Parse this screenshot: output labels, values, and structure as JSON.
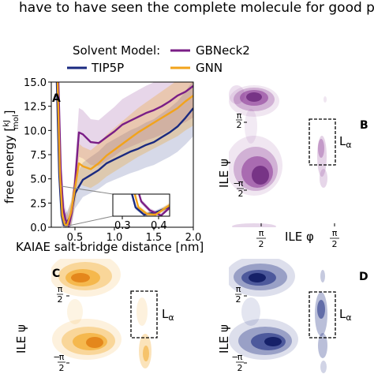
{
  "caption_text": "have to have seen the complete molecule for good performance",
  "chart_data": [
    {
      "type": "line",
      "panel": "A",
      "xlabel": "KAIAE salt-bridge distance [nm]",
      "ylabel": "free energy [kJ/mol]",
      "xlim": [
        0.2,
        2.0
      ],
      "ylim": [
        0.0,
        15.0
      ],
      "xticks": [
        "0.5",
        "1.0",
        "1.5",
        "2.0"
      ],
      "yticks": [
        "0.0",
        "2.5",
        "5.0",
        "7.5",
        "10.0",
        "12.5",
        "15.0"
      ],
      "legend_title": "Solvent Model:",
      "legend_labels": {
        "tip5p": "TIP5P",
        "gbneck2": "GBNeck2",
        "gnn": "GNN"
      },
      "colors": {
        "tip5p": "#1a2a80",
        "gbneck2": "#7a1e86",
        "gnn": "#f2a31b"
      },
      "series": [
        {
          "name": "TIP5P",
          "key": "tip5p",
          "x": [
            0.27,
            0.3,
            0.33,
            0.36,
            0.4,
            0.45,
            0.5,
            0.6,
            0.7,
            0.8,
            0.9,
            1.0,
            1.1,
            1.2,
            1.3,
            1.4,
            1.5,
            1.6,
            1.7,
            1.8,
            1.9,
            2.0
          ],
          "y": [
            15.0,
            5.5,
            1.2,
            0.2,
            0.5,
            1.3,
            3.5,
            4.9,
            5.4,
            5.9,
            6.6,
            7.0,
            7.4,
            7.8,
            8.1,
            8.5,
            8.8,
            9.3,
            9.8,
            10.4,
            11.3,
            12.3
          ]
        },
        {
          "name": "GBNeck2",
          "key": "gbneck2",
          "x": [
            0.29,
            0.32,
            0.35,
            0.38,
            0.42,
            0.46,
            0.5,
            0.55,
            0.6,
            0.7,
            0.8,
            0.9,
            1.0,
            1.1,
            1.2,
            1.3,
            1.4,
            1.5,
            1.6,
            1.7,
            1.8,
            1.9,
            2.0
          ],
          "y": [
            15.0,
            6.0,
            2.0,
            0.8,
            0.1,
            1.5,
            4.5,
            9.8,
            9.6,
            8.8,
            8.7,
            9.3,
            9.9,
            10.6,
            11.0,
            11.4,
            11.8,
            12.1,
            12.5,
            13.0,
            13.6,
            14.0,
            14.6
          ]
        },
        {
          "name": "GNN",
          "key": "gnn",
          "x": [
            0.28,
            0.31,
            0.34,
            0.37,
            0.4,
            0.45,
            0.5,
            0.55,
            0.6,
            0.7,
            0.8,
            0.9,
            1.0,
            1.1,
            1.2,
            1.3,
            1.4,
            1.5,
            1.6,
            1.7,
            1.8,
            1.9,
            2.0
          ],
          "y": [
            15.0,
            5.5,
            1.2,
            0.3,
            0.2,
            1.5,
            4.0,
            6.6,
            6.3,
            6.0,
            6.6,
            7.4,
            8.0,
            8.6,
            9.2,
            9.8,
            10.3,
            10.8,
            11.3,
            11.8,
            12.3,
            13.0,
            13.6
          ]
        }
      ],
      "inset": {
        "xticks": [
          "0.3",
          "0.4"
        ],
        "xlim": [
          0.25,
          0.45
        ],
        "ylim": [
          0.0,
          3.0
        ]
      }
    },
    {
      "type": "heatmap",
      "panel": "B",
      "color": "#7a1e86",
      "xlabel": "ILE φ",
      "ylabel": "ILE ψ",
      "xticks": [
        "-π/2",
        "π/2"
      ],
      "yticks": [
        "π/2",
        "-π/2"
      ],
      "annotation": "Lα"
    },
    {
      "type": "heatmap",
      "panel": "C",
      "color": "#f2a31b",
      "ylabel": "ILE ψ",
      "yticks": [
        "π/2",
        "-π/2"
      ],
      "annotation": "Lα"
    },
    {
      "type": "heatmap",
      "panel": "D",
      "color": "#1a2a80",
      "ylabel": "ILE ψ",
      "yticks": [
        "π/2",
        "-π/2"
      ],
      "annotation": "Lα"
    }
  ]
}
